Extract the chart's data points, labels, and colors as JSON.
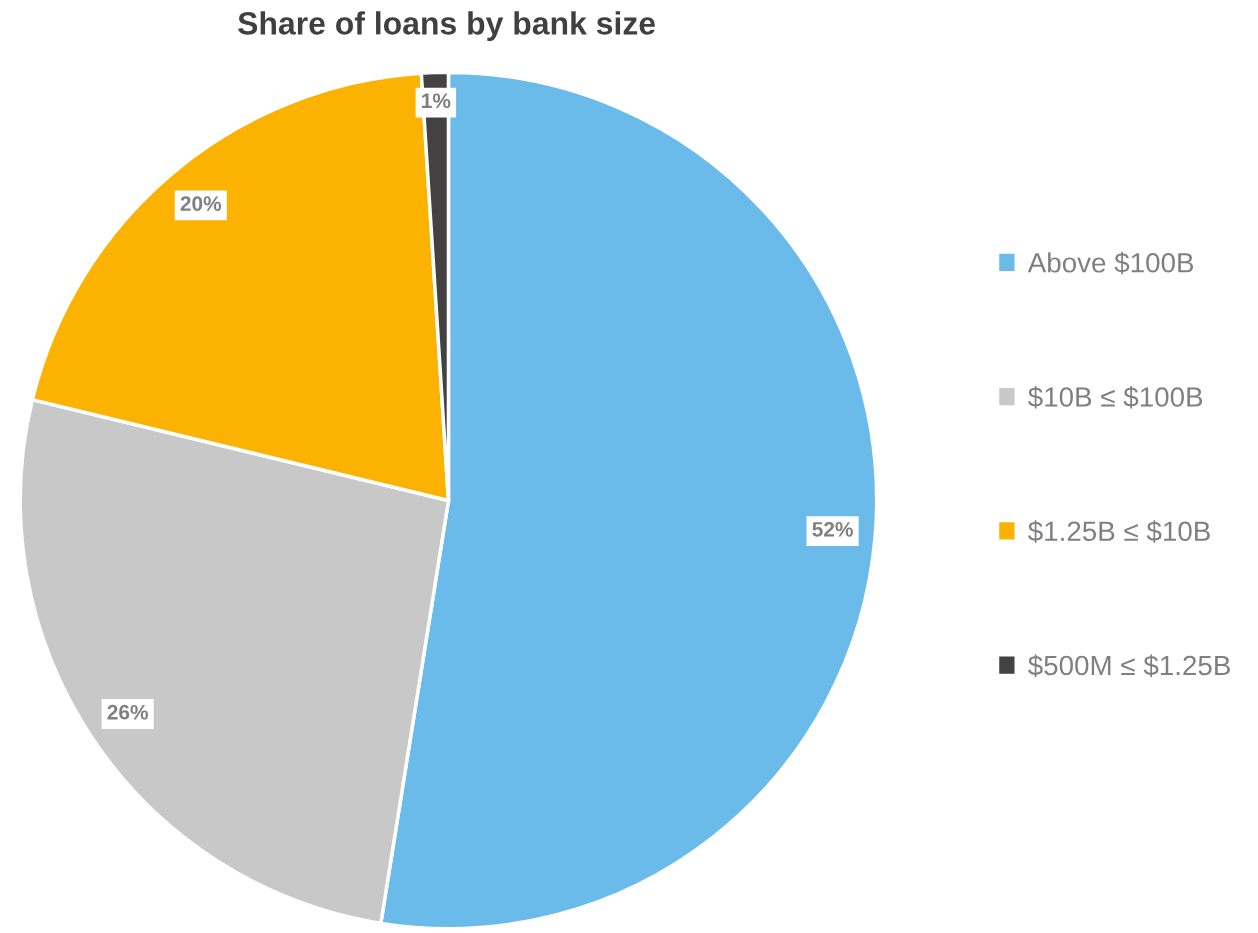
{
  "chart_data": {
    "type": "pie",
    "title": "Share of loans by bank size",
    "categories": [
      "Above $100B",
      "$10B ≤ $100B",
      "$1.25B ≤ $10B",
      "$500M ≤ $1.25B"
    ],
    "values": [
      52,
      26,
      20,
      1
    ],
    "colors": [
      "#6bbbea",
      "#c8c8c8",
      "#fbb200",
      "#444142"
    ],
    "value_labels": [
      "52%",
      "26%",
      "20%",
      "1%"
    ],
    "legend": "right"
  }
}
